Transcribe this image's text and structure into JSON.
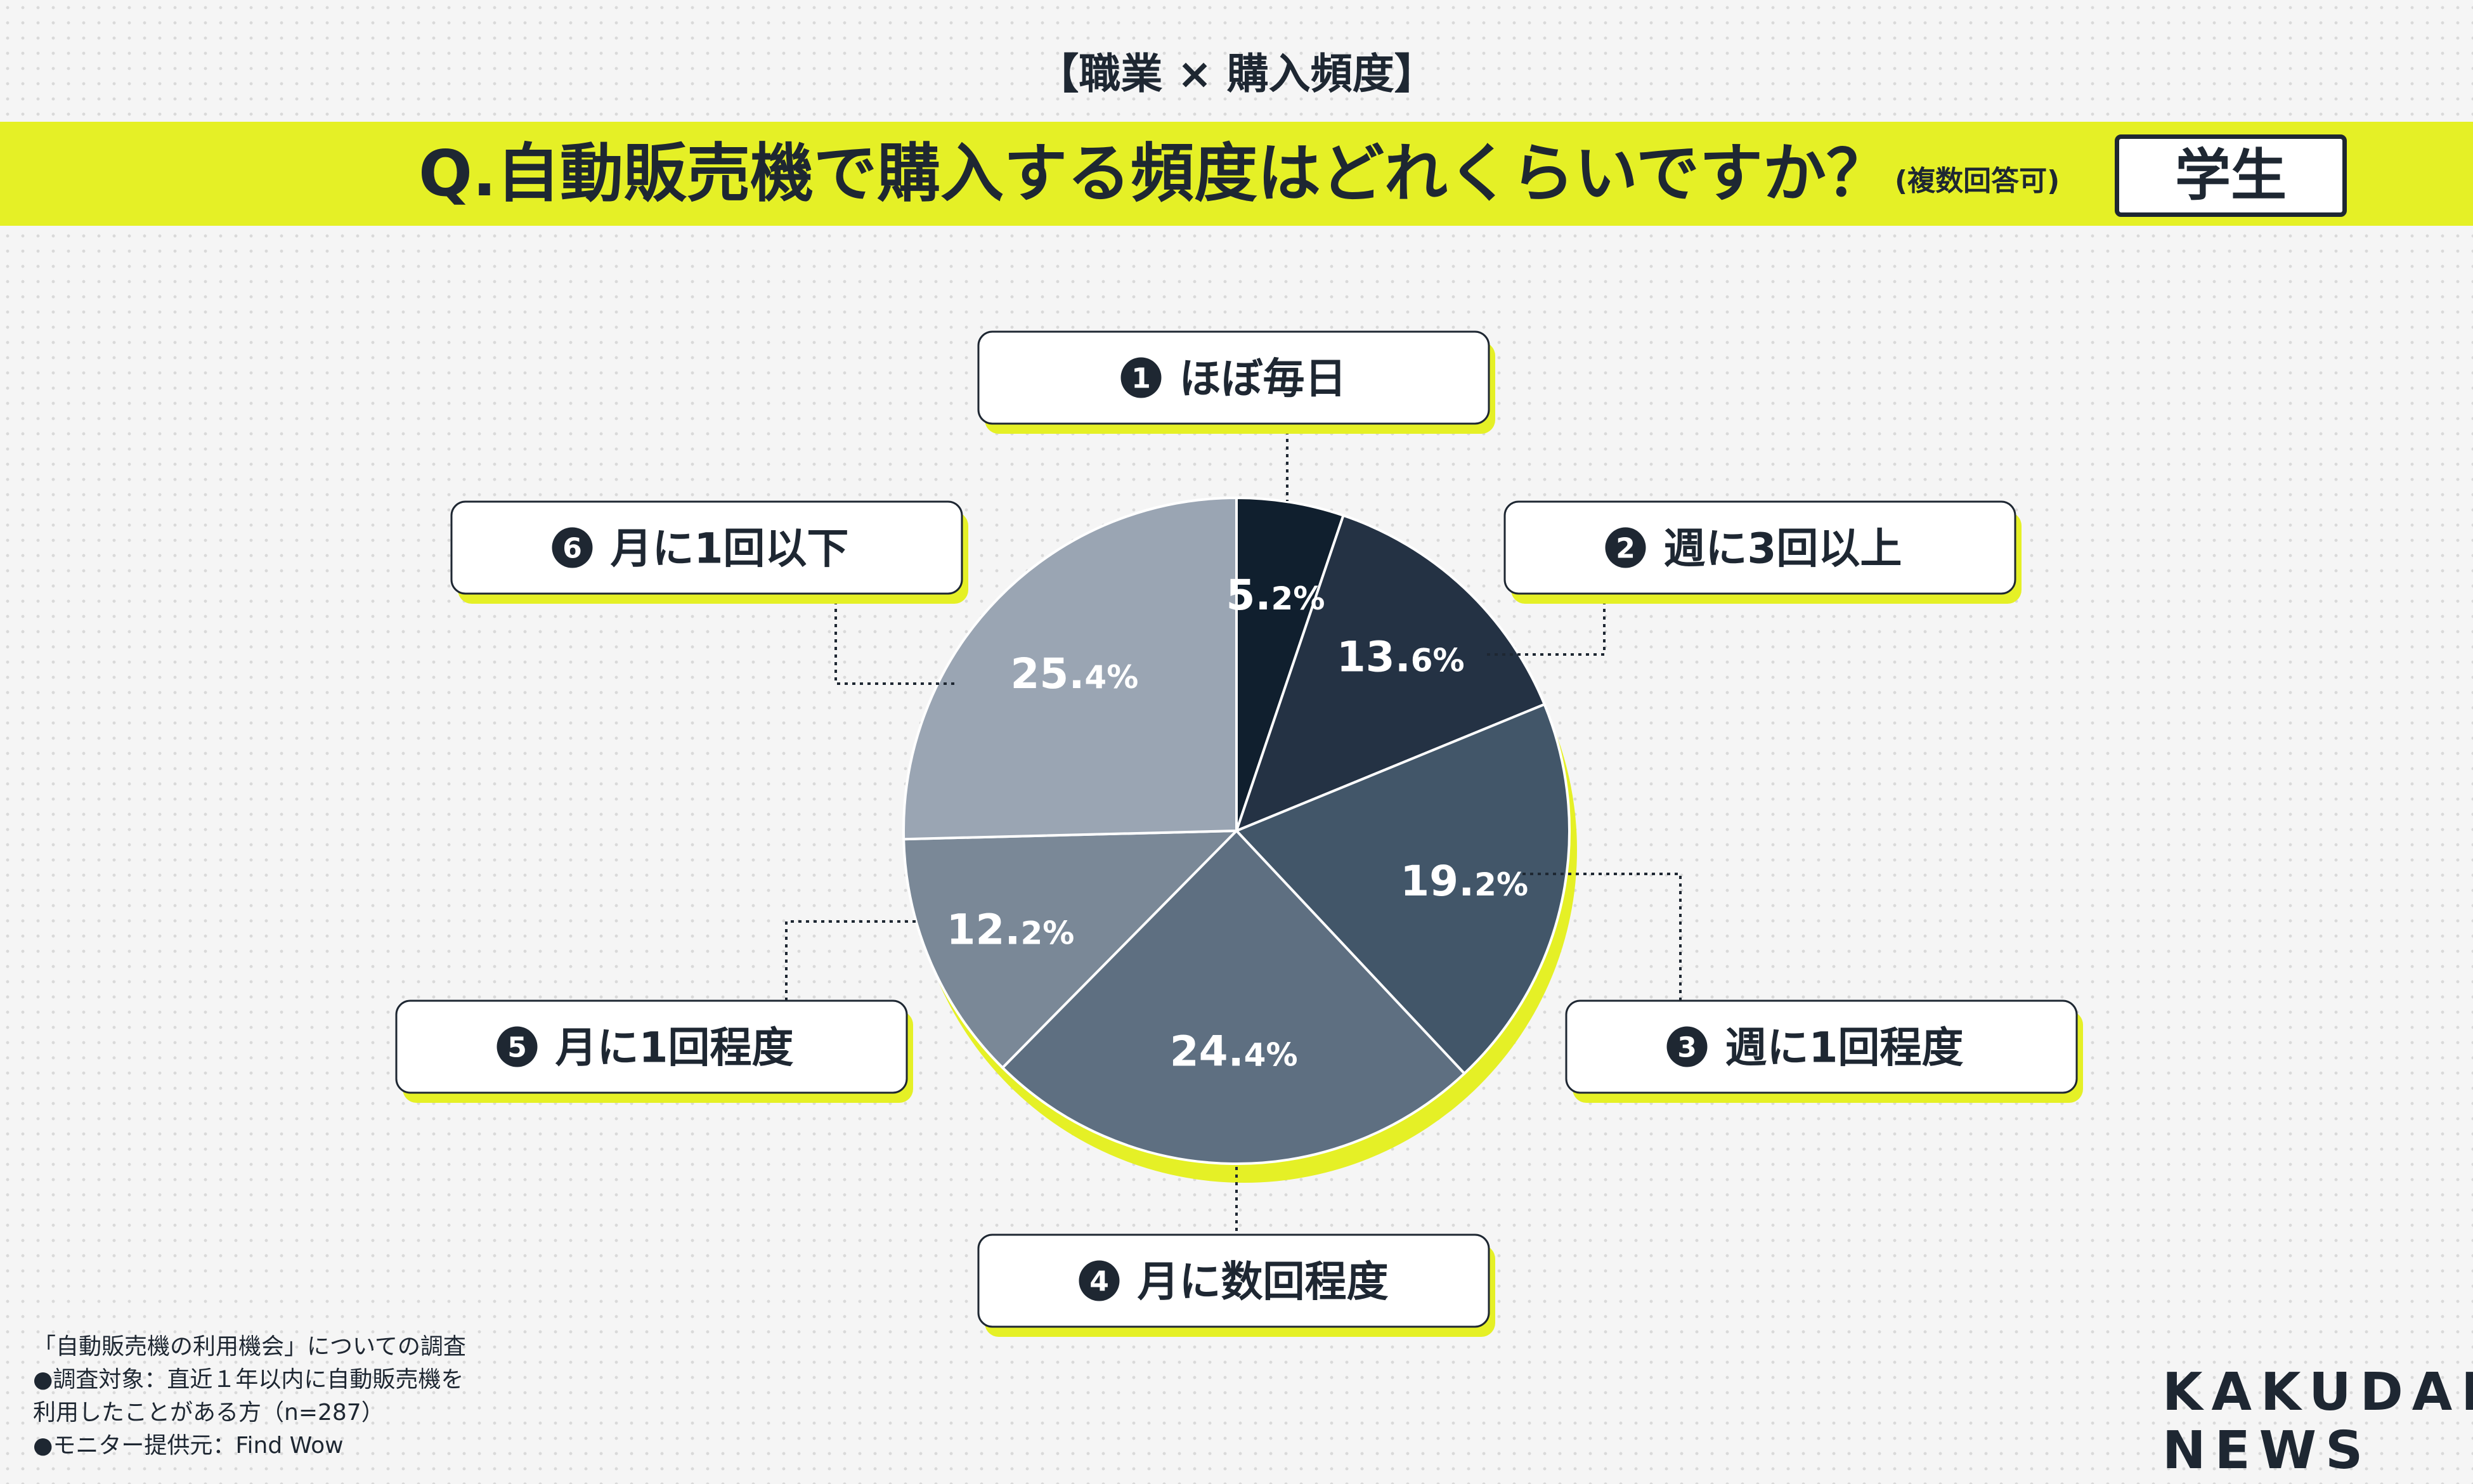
{
  "header": {
    "subtitle": "【職業 × 購入頻度】",
    "question": "Q.自動販売機で購入する頻度はどれくらいですか？",
    "question_note": "(複数回答可)",
    "segment_tag": "学生"
  },
  "colors": {
    "accent": "#e5f026",
    "text": "#1e2732",
    "slices": [
      "#101f2e",
      "#243244",
      "#425669",
      "#5e6f81",
      "#7a8897",
      "#9aa5b3"
    ]
  },
  "chart_data": {
    "type": "pie",
    "categories": [
      "ほぼ毎日",
      "週に3回以上",
      "週に1回程度",
      "月に数回程度",
      "月に1回程度",
      "月に1回以下"
    ],
    "values": [
      5.2,
      13.6,
      19.2,
      24.4,
      12.2,
      25.4
    ],
    "value_labels": [
      {
        "int": "5.",
        "dec": "2%"
      },
      {
        "int": "13.",
        "dec": "6%"
      },
      {
        "int": "19.",
        "dec": "2%"
      },
      {
        "int": "24.",
        "dec": "4%"
      },
      {
        "int": "12.",
        "dec": "2%"
      },
      {
        "int": "25.",
        "dec": "4%"
      }
    ],
    "badges": [
      "1",
      "2",
      "3",
      "4",
      "5",
      "6"
    ],
    "start": "12 o'clock",
    "direction": "clockwise"
  },
  "footnote": {
    "line1": "「自動販売機の利用機会」についての調査",
    "line2": "●調査対象：直近１年以内に自動販売機を",
    "line3": "利用したことがある方（n=287）",
    "line4": "●モニター提供元：Find Wow"
  },
  "logo": {
    "line1": "KAKUDAI",
    "line2": "NEWS"
  }
}
